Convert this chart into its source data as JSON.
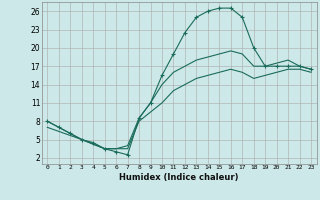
{
  "title": "",
  "xlabel": "Humidex (Indice chaleur)",
  "bg_color": "#cce8e8",
  "grid_color": "#aaaaaa",
  "line_color": "#1a6b5a",
  "xlim": [
    -0.5,
    23.5
  ],
  "ylim": [
    1,
    27.5
  ],
  "xticks": [
    0,
    1,
    2,
    3,
    4,
    5,
    6,
    7,
    8,
    9,
    10,
    11,
    12,
    13,
    14,
    15,
    16,
    17,
    18,
    19,
    20,
    21,
    22,
    23
  ],
  "yticks": [
    2,
    5,
    8,
    11,
    14,
    17,
    20,
    23,
    26
  ],
  "line1_x": [
    0,
    1,
    2,
    3,
    4,
    5,
    6,
    7,
    8,
    9,
    10,
    11,
    12,
    13,
    14,
    15,
    16,
    17,
    18,
    19,
    20,
    21,
    22,
    23
  ],
  "line1_y": [
    8,
    7,
    6,
    5,
    4.5,
    3.5,
    3,
    2.5,
    8.5,
    11,
    15.5,
    19,
    22.5,
    25,
    26,
    26.5,
    26.5,
    25,
    20,
    17,
    17,
    17,
    17,
    16.5
  ],
  "line2_x": [
    0,
    3,
    5,
    6,
    7,
    8,
    9,
    10,
    11,
    12,
    13,
    14,
    15,
    16,
    17,
    18,
    19,
    20,
    21,
    22,
    23
  ],
  "line2_y": [
    8,
    5,
    3.5,
    3.5,
    4,
    8.5,
    11,
    14,
    16,
    17,
    18,
    18.5,
    19,
    19.5,
    19,
    17,
    17,
    17.5,
    18,
    17,
    16.5
  ],
  "line3_x": [
    0,
    3,
    5,
    6,
    7,
    8,
    9,
    10,
    11,
    12,
    13,
    14,
    15,
    16,
    17,
    18,
    19,
    20,
    21,
    22,
    23
  ],
  "line3_y": [
    7,
    5,
    3.5,
    3.5,
    3.5,
    8,
    9.5,
    11,
    13,
    14,
    15,
    15.5,
    16,
    16.5,
    16,
    15,
    15.5,
    16,
    16.5,
    16.5,
    16
  ]
}
